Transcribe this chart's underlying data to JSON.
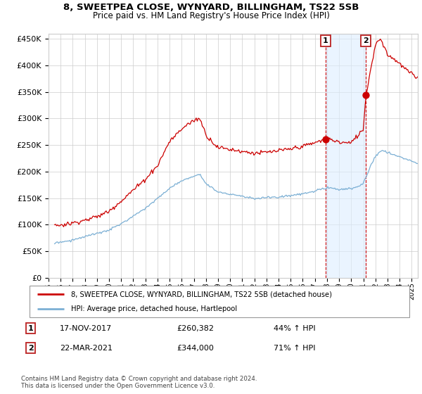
{
  "title": "8, SWEETPEA CLOSE, WYNYARD, BILLINGHAM, TS22 5SB",
  "subtitle": "Price paid vs. HM Land Registry's House Price Index (HPI)",
  "xlim_start": 1995.5,
  "xlim_end": 2025.5,
  "ylim_min": 0,
  "ylim_max": 460000,
  "yticks": [
    0,
    50000,
    100000,
    150000,
    200000,
    250000,
    300000,
    350000,
    400000,
    450000
  ],
  "ytick_labels": [
    "£0",
    "£50K",
    "£100K",
    "£150K",
    "£200K",
    "£250K",
    "£300K",
    "£350K",
    "£400K",
    "£450K"
  ],
  "xtick_years": [
    1995,
    1996,
    1997,
    1998,
    1999,
    2000,
    2001,
    2002,
    2003,
    2004,
    2005,
    2006,
    2007,
    2008,
    2009,
    2010,
    2011,
    2012,
    2013,
    2014,
    2015,
    2016,
    2017,
    2018,
    2019,
    2020,
    2021,
    2022,
    2023,
    2024,
    2025
  ],
  "red_line_color": "#cc0000",
  "blue_line_color": "#7bafd4",
  "marker1_date": 2017.88,
  "marker1_value": 260382,
  "marker2_date": 2021.22,
  "marker2_value": 344000,
  "vline_color": "#cc0000",
  "shade_color": "#ddeeff",
  "shade_alpha": 0.6,
  "legend_line1": "8, SWEETPEA CLOSE, WYNYARD, BILLINGHAM, TS22 5SB (detached house)",
  "legend_line2": "HPI: Average price, detached house, Hartlepool",
  "table_row1_num": "1",
  "table_row1_date": "17-NOV-2017",
  "table_row1_price": "£260,382",
  "table_row1_hpi": "44% ↑ HPI",
  "table_row2_num": "2",
  "table_row2_date": "22-MAR-2021",
  "table_row2_price": "£344,000",
  "table_row2_hpi": "71% ↑ HPI",
  "footnote": "Contains HM Land Registry data © Crown copyright and database right 2024.\nThis data is licensed under the Open Government Licence v3.0.",
  "grid_color": "#cccccc",
  "background_color": "#ffffff",
  "red_anchors_x": [
    1995.5,
    1996,
    1997,
    1998,
    1999,
    2000,
    2001,
    2002,
    2003,
    2004,
    2005,
    2006,
    2007,
    2007.5,
    2008,
    2009,
    2010,
    2011,
    2012,
    2013,
    2014,
    2015,
    2016,
    2017,
    2017.88,
    2018,
    2019,
    2020,
    2021,
    2021.22,
    2021.5,
    2022,
    2022.3,
    2022.6,
    2023,
    2023.5,
    2024,
    2024.5,
    2025,
    2025.5
  ],
  "red_anchors_y": [
    97000,
    98000,
    102000,
    108000,
    115000,
    125000,
    145000,
    165000,
    185000,
    210000,
    255000,
    278000,
    295000,
    300000,
    270000,
    245000,
    242000,
    238000,
    235000,
    237000,
    240000,
    243000,
    248000,
    255000,
    260382,
    262000,
    256000,
    255000,
    280000,
    344000,
    380000,
    440000,
    450000,
    445000,
    420000,
    415000,
    405000,
    395000,
    385000,
    378000
  ],
  "blue_anchors_x": [
    1995.5,
    1996,
    1997,
    1998,
    1999,
    2000,
    2001,
    2002,
    2003,
    2004,
    2005,
    2006,
    2007,
    2007.5,
    2008,
    2009,
    2010,
    2011,
    2012,
    2013,
    2014,
    2015,
    2016,
    2017,
    2017.88,
    2018,
    2019,
    2020,
    2021,
    2021.22,
    2021.5,
    2022,
    2022.5,
    2023,
    2023.5,
    2024,
    2024.5,
    2025,
    2025.5
  ],
  "blue_anchors_y": [
    65000,
    66000,
    70000,
    76000,
    82000,
    88000,
    100000,
    115000,
    130000,
    148000,
    168000,
    182000,
    192000,
    195000,
    178000,
    162000,
    158000,
    154000,
    150000,
    151000,
    153000,
    156000,
    160000,
    165000,
    170000,
    172000,
    168000,
    168000,
    178000,
    190000,
    205000,
    230000,
    240000,
    235000,
    232000,
    228000,
    224000,
    220000,
    215000
  ]
}
